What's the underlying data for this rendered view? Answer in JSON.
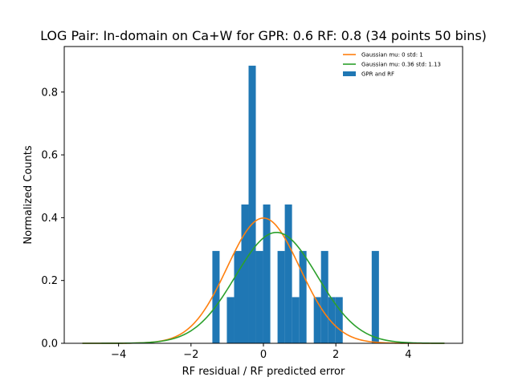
{
  "chart_data": {
    "type": "bar",
    "title": "LOG Pair: In-domain on Ca+W for GPR: 0.6 RF: 0.8 (34 points 50 bins)",
    "xlabel": "RF residual / RF predicted error",
    "ylabel": "Normalized Counts",
    "xlim": [
      -5.5,
      5.5
    ],
    "ylim": [
      0,
      0.945
    ],
    "xticks": [
      -4,
      -2,
      0,
      2,
      4
    ],
    "xtick_labels": [
      "−4",
      "−2",
      "0",
      "2",
      "4"
    ],
    "yticks": [
      0.0,
      0.2,
      0.4,
      0.6,
      0.8
    ],
    "ytick_labels": [
      "0.0",
      "0.2",
      "0.4",
      "0.6",
      "0.8"
    ],
    "grid": false,
    "legend_position": "top-right",
    "histogram": {
      "name": "GPR and RF",
      "color": "#1f77b4",
      "bins": [
        {
          "x0": -1.41,
          "x1": -1.21,
          "value": 0.294
        },
        {
          "x0": -1.01,
          "x1": -0.81,
          "value": 0.147
        },
        {
          "x0": -0.81,
          "x1": -0.61,
          "value": 0.294
        },
        {
          "x0": -0.61,
          "x1": -0.41,
          "value": 0.442
        },
        {
          "x0": -0.41,
          "x1": -0.21,
          "value": 0.884
        },
        {
          "x0": -0.21,
          "x1": -0.01,
          "value": 0.294
        },
        {
          "x0": -0.01,
          "x1": 0.19,
          "value": 0.442
        },
        {
          "x0": 0.39,
          "x1": 0.59,
          "value": 0.294
        },
        {
          "x0": 0.59,
          "x1": 0.79,
          "value": 0.442
        },
        {
          "x0": 0.79,
          "x1": 0.99,
          "value": 0.147
        },
        {
          "x0": 0.99,
          "x1": 1.19,
          "value": 0.294
        },
        {
          "x0": 1.39,
          "x1": 1.59,
          "value": 0.147
        },
        {
          "x0": 1.59,
          "x1": 1.79,
          "value": 0.294
        },
        {
          "x0": 1.79,
          "x1": 1.99,
          "value": 0.147
        },
        {
          "x0": 1.99,
          "x1": 2.19,
          "value": 0.147
        },
        {
          "x0": 2.99,
          "x1": 3.19,
          "value": 0.294
        }
      ]
    },
    "series": [
      {
        "name": "Gaussian mu: 0 std: 1",
        "type": "line",
        "mu": 0,
        "std": 1,
        "x_range": [
          -5,
          5
        ],
        "color": "#ff7f0e"
      },
      {
        "name": "Gaussian mu: 0.36 std: 1.13",
        "type": "line",
        "mu": 0.36,
        "std": 1.13,
        "x_range": [
          -5,
          5
        ],
        "color": "#2ca02c"
      }
    ],
    "legend": [
      {
        "label": "Gaussian mu: 0 std: 1",
        "kind": "line",
        "color": "#ff7f0e"
      },
      {
        "label": "Gaussian mu: 0.36 std: 1.13",
        "kind": "line",
        "color": "#2ca02c"
      },
      {
        "label": "GPR and RF",
        "kind": "patch",
        "color": "#1f77b4"
      }
    ]
  }
}
